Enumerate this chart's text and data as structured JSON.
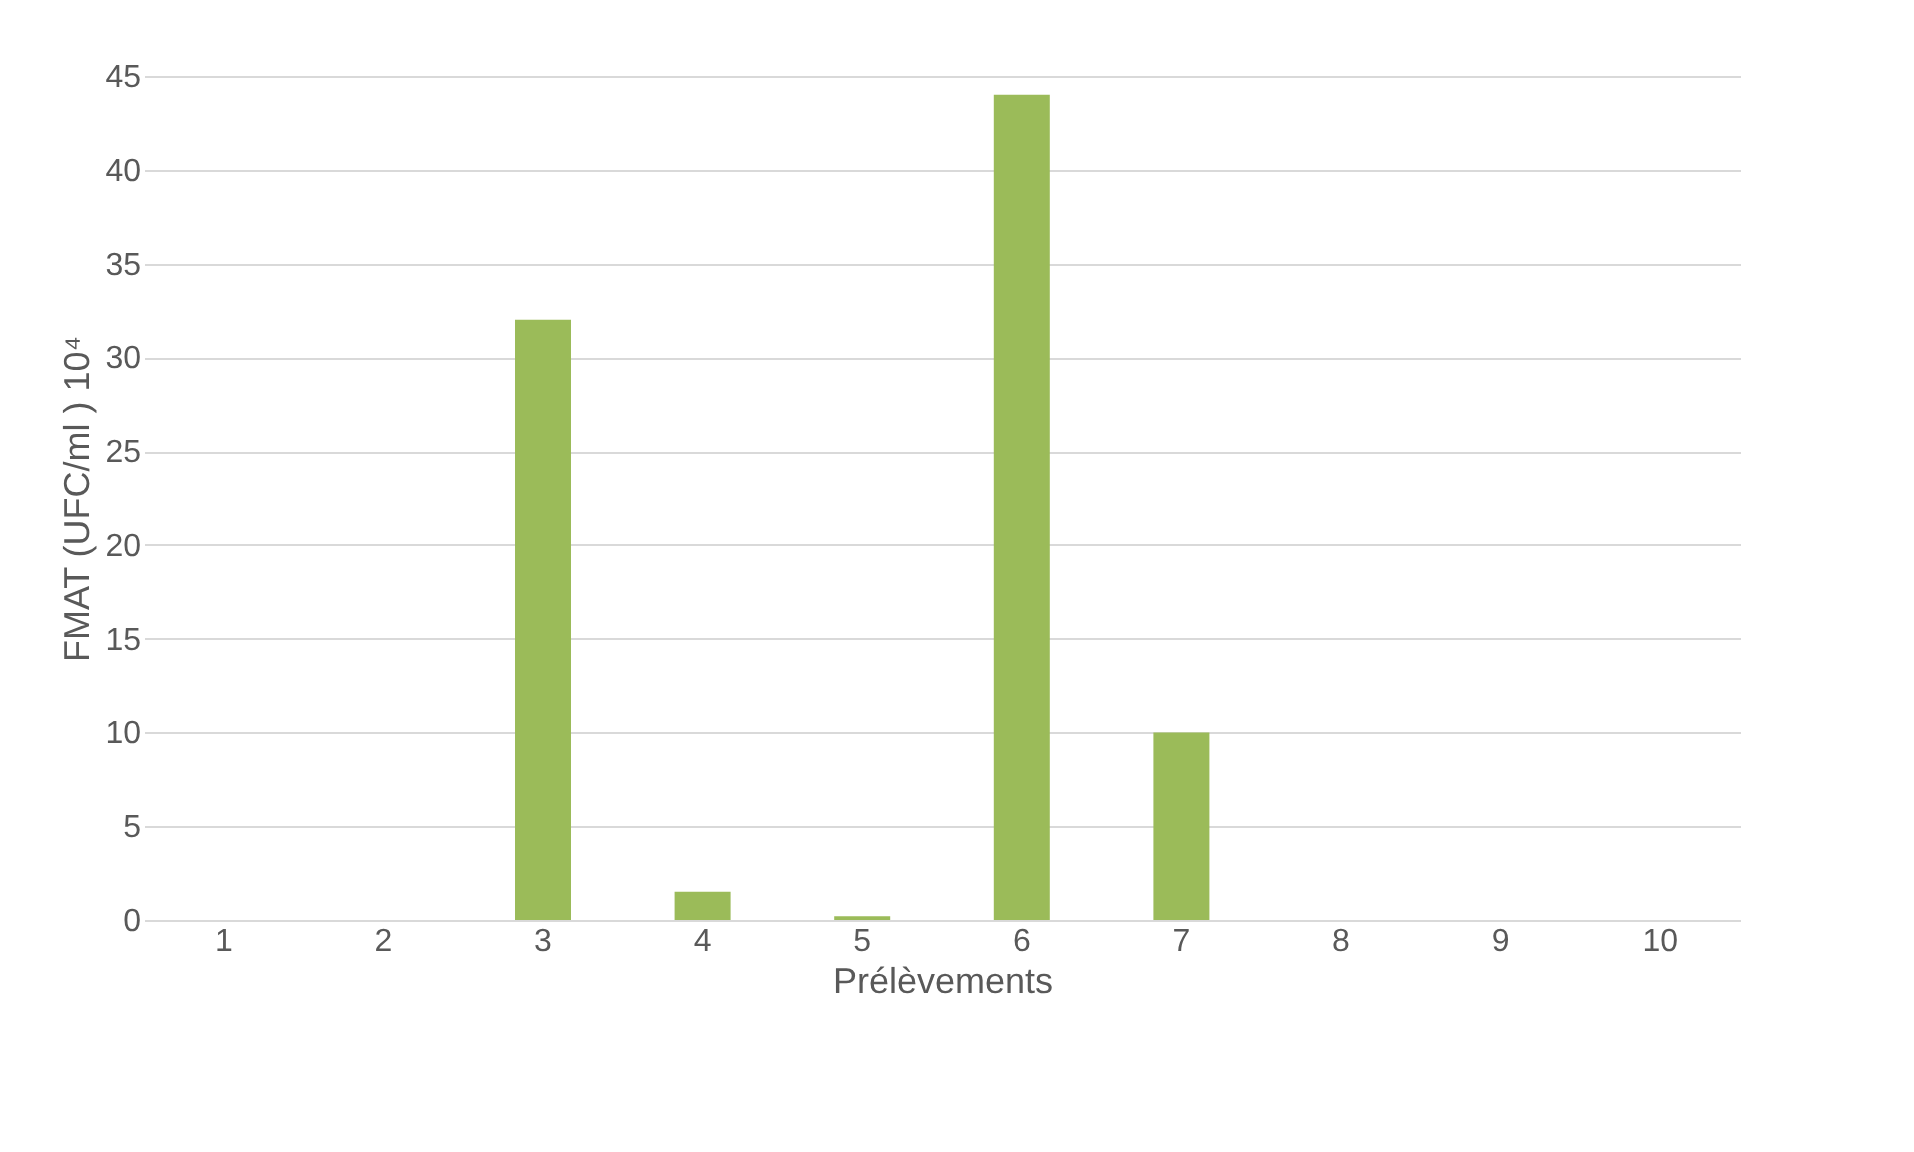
{
  "chart_data": {
    "type": "bar",
    "xlabel": "Prélèvements",
    "ylabel": "FMAT (UFC/ml ) 10⁴",
    "categories": [
      "1",
      "2",
      "3",
      "4",
      "5",
      "6",
      "7",
      "8",
      "9",
      "10"
    ],
    "values": [
      0,
      0,
      32,
      1.5,
      0.2,
      44,
      10,
      0,
      0,
      0
    ],
    "color": "#9bbb59",
    "ylim": [
      0,
      45
    ],
    "yticks": [
      0,
      5,
      10,
      15,
      20,
      25,
      30,
      35,
      40,
      45
    ],
    "grid": "y"
  }
}
